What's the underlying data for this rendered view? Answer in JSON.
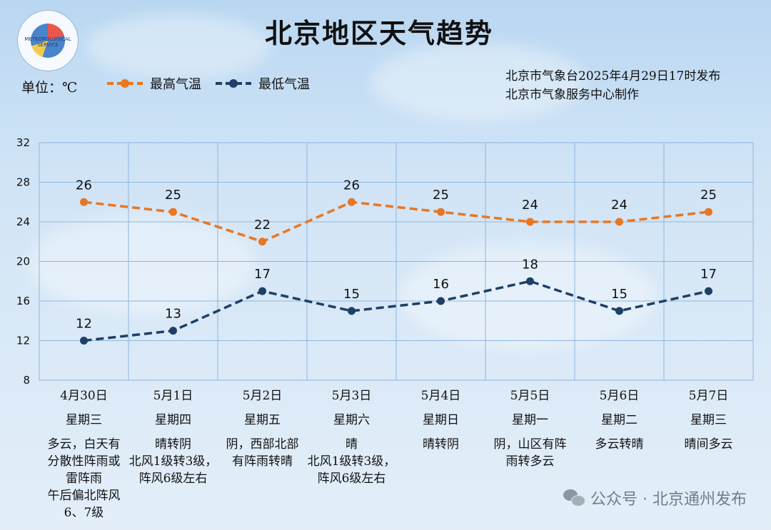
{
  "title": "北京地区天气趋势",
  "unit_label": "单位：℃",
  "logo": {
    "ring_text": "METEOROLOGICAL SERVICE",
    "icon": "meteorological-service-logo"
  },
  "issuer": {
    "line1": "北京市气象台2025年4月29日17时发布",
    "line2": "北京市气象服务中心制作"
  },
  "watermark": {
    "icon": "wechat-icon",
    "text": "公众号 · 北京通州发布"
  },
  "colors": {
    "high": "#e87722",
    "low": "#1e3f66",
    "grid": "#8fb6dc"
  },
  "chart_data": {
    "type": "line",
    "title": "北京地区天气趋势",
    "ylabel": "单位：℃",
    "ylim": [
      8,
      32
    ],
    "yticks": [
      8,
      12,
      16,
      20,
      24,
      28,
      32
    ],
    "grid": true,
    "legend_position": "top-left",
    "categories": [
      "4月30日",
      "5月1日",
      "5月2日",
      "5月3日",
      "5月4日",
      "5月5日",
      "5月6日",
      "5月7日"
    ],
    "series": [
      {
        "name": "最高气温",
        "key": "high",
        "style": "dashed",
        "values": [
          26,
          25,
          22,
          26,
          25,
          24,
          24,
          25
        ]
      },
      {
        "name": "最低气温",
        "key": "low",
        "style": "dashed",
        "values": [
          12,
          13,
          17,
          15,
          16,
          18,
          15,
          17
        ]
      }
    ]
  },
  "days": [
    {
      "date": "4月30日",
      "weekday": "星期三",
      "weather": [
        "多云，白天有",
        "分散性阵雨或",
        "雷阵雨",
        "午后偏北阵风",
        "6、7级"
      ]
    },
    {
      "date": "5月1日",
      "weekday": "星期四",
      "weather": [
        "晴转阴",
        "北风1级转3级，",
        "阵风6级左右"
      ]
    },
    {
      "date": "5月2日",
      "weekday": "星期五",
      "weather": [
        "阴，西部北部",
        "有阵雨转晴"
      ]
    },
    {
      "date": "5月3日",
      "weekday": "星期六",
      "weather": [
        "晴",
        "北风1级转3级，",
        "阵风6级左右"
      ]
    },
    {
      "date": "5月4日",
      "weekday": "星期日",
      "weather": [
        "晴转阴"
      ]
    },
    {
      "date": "5月5日",
      "weekday": "星期一",
      "weather": [
        "阴，山区有阵",
        "雨转多云"
      ]
    },
    {
      "date": "5月6日",
      "weekday": "星期二",
      "weather": [
        "多云转晴"
      ]
    },
    {
      "date": "5月7日",
      "weekday": "星期三",
      "weather": [
        "晴间多云"
      ]
    }
  ]
}
